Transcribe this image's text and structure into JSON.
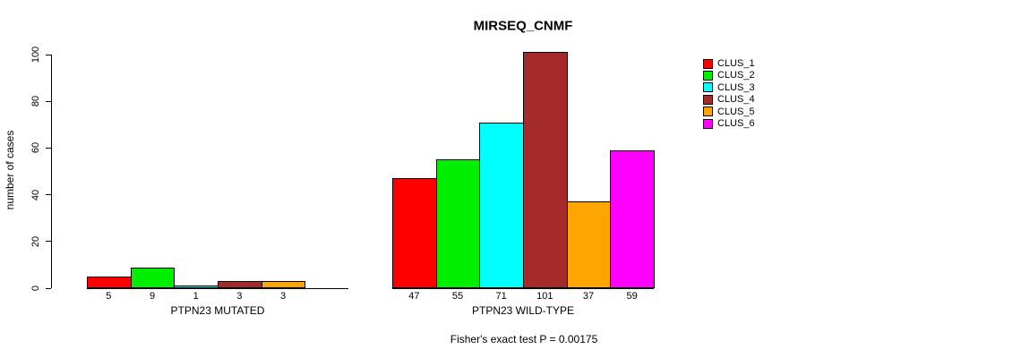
{
  "title": "MIRSEQ_CNMF",
  "footer": "Fisher's exact test P = 0.00175",
  "chart_data": {
    "type": "bar",
    "title": "MIRSEQ_CNMF",
    "ylabel": "number of cases",
    "ylim": [
      0,
      101
    ],
    "yticks": [
      0,
      20,
      40,
      60,
      80,
      100
    ],
    "grid": false,
    "legend_position": "right",
    "legend": [
      {
        "label": "CLUS_1",
        "color": "#FF0000"
      },
      {
        "label": "CLUS_2",
        "color": "#00EE00"
      },
      {
        "label": "CLUS_3",
        "color": "#00FFFF"
      },
      {
        "label": "CLUS_4",
        "color": "#A52A2A"
      },
      {
        "label": "CLUS_5",
        "color": "#FFA500"
      },
      {
        "label": "CLUS_6",
        "color": "#FF00FF"
      }
    ],
    "series_names": [
      "CLUS_1",
      "CLUS_2",
      "CLUS_3",
      "CLUS_4",
      "CLUS_5",
      "CLUS_6"
    ],
    "groups": [
      {
        "label": "PTPN23 MUTATED",
        "values": [
          5,
          9,
          1,
          3,
          3,
          0
        ],
        "bar_labels": [
          "5",
          "9",
          "1",
          "3",
          "3",
          ""
        ]
      },
      {
        "label": "PTPN23 WILD-TYPE",
        "values": [
          47,
          55,
          71,
          101,
          37,
          59
        ],
        "bar_labels": [
          "47",
          "55",
          "71",
          "101",
          "37",
          "59"
        ]
      }
    ],
    "annotation": "Fisher's exact test P = 0.00175"
  }
}
